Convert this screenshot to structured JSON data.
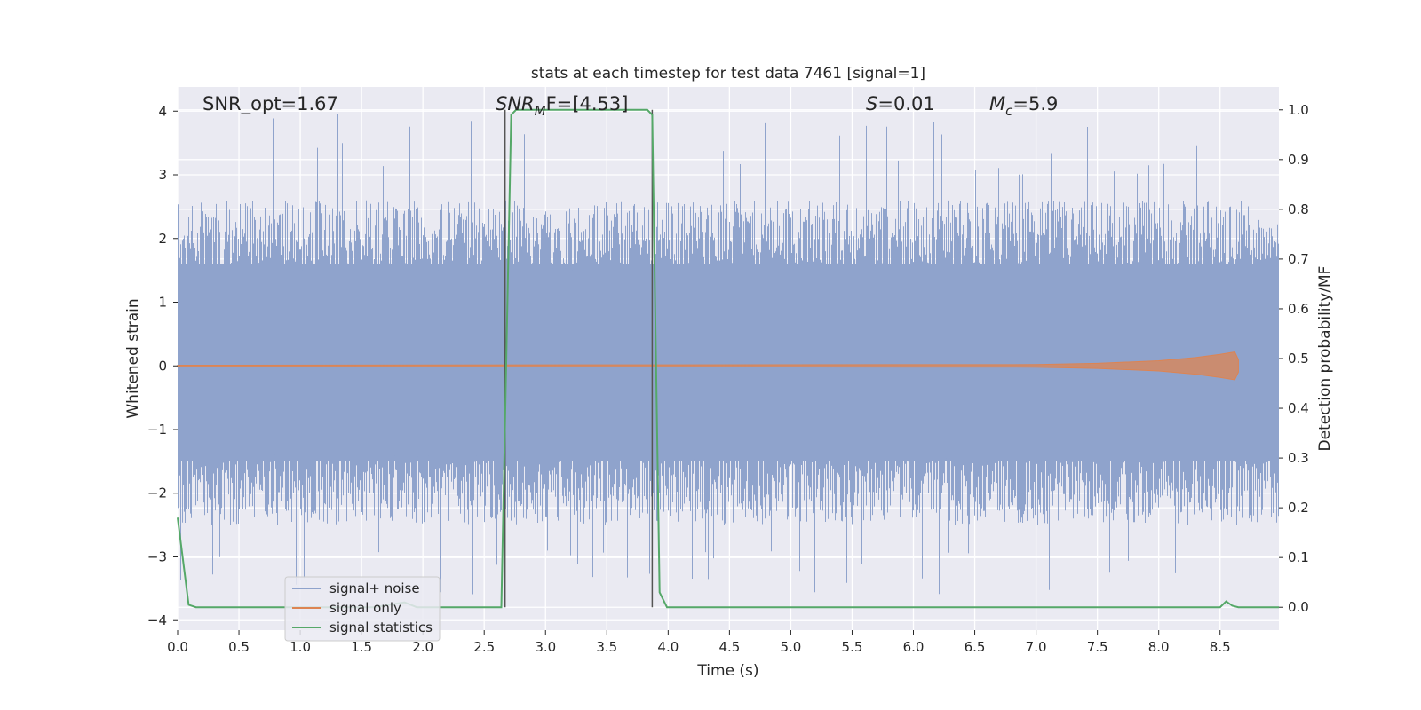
{
  "chart_data": {
    "type": "line",
    "title": "stats at each timestep for test data 7461 [signal=1]",
    "xlabel": "Time (s)",
    "ylabel_left": "Whitened strain",
    "ylabel_right": "Detection probability/MF",
    "xlim": [
      0.0,
      8.98
    ],
    "ylim_left": [
      -4.15,
      4.38
    ],
    "ylim_right": [
      -0.046,
      1.046
    ],
    "x_ticks": [
      "0.0",
      "0.5",
      "1.0",
      "1.5",
      "2.0",
      "2.5",
      "3.0",
      "3.5",
      "4.0",
      "4.5",
      "5.0",
      "5.5",
      "6.0",
      "6.5",
      "7.0",
      "7.5",
      "8.0",
      "8.5"
    ],
    "y_ticks_left": [
      "4",
      "3",
      "2",
      "1",
      "0",
      "−1",
      "−2",
      "−3",
      "−4"
    ],
    "y_ticks_right": [
      "1.0",
      "0.9",
      "0.8",
      "0.7",
      "0.6",
      "0.5",
      "0.4",
      "0.3",
      "0.2",
      "0.1",
      "0.0"
    ],
    "grid": true,
    "legend_position": "lower-left",
    "annotations": {
      "snr_opt": "SNR_opt=1.67",
      "snr_mf_symbol": "SNR",
      "snr_mf_sub": "M",
      "snr_mf_rest": "F=[4.53]",
      "s_symbol": "S",
      "s_value": "=0.01",
      "mc_symbol": "M",
      "mc_sub": "c",
      "mc_value": "=5.9"
    },
    "vlines_x": [
      2.67,
      3.87
    ],
    "series": [
      {
        "name": "signal+ noise",
        "color": "#8fa3cc",
        "description_values": "whitened noise, sample range approx -3.6 to 4.0",
        "envelope": {
          "t": [
            0.0,
            8.98
          ],
          "upper_typical": 2.2,
          "lower_typical": -2.2,
          "max": 4.0,
          "min": -3.6
        }
      },
      {
        "name": "signal only",
        "color": "#dd8452",
        "x": [
          0.0,
          7.0,
          7.5,
          8.0,
          8.3,
          8.5,
          8.62,
          8.65
        ],
        "amplitude": [
          0.01,
          0.02,
          0.04,
          0.08,
          0.13,
          0.18,
          0.22,
          0.1
        ]
      },
      {
        "name": "signal statistics",
        "color": "#55a868",
        "x": [
          0.0,
          0.09,
          0.15,
          0.8,
          1.6,
          1.85,
          1.95,
          2.6,
          2.64,
          2.72,
          2.76,
          3.83,
          3.87,
          3.93,
          3.99,
          8.5,
          8.55,
          8.6,
          8.65,
          8.98
        ],
        "y": [
          0.18,
          0.005,
          0.0,
          0.0,
          0.0,
          0.01,
          0.0,
          0.0,
          0.0,
          0.99,
          1.0,
          1.0,
          0.99,
          0.03,
          0.0,
          0.0,
          0.012,
          0.003,
          0.0,
          0.0
        ]
      }
    ]
  }
}
